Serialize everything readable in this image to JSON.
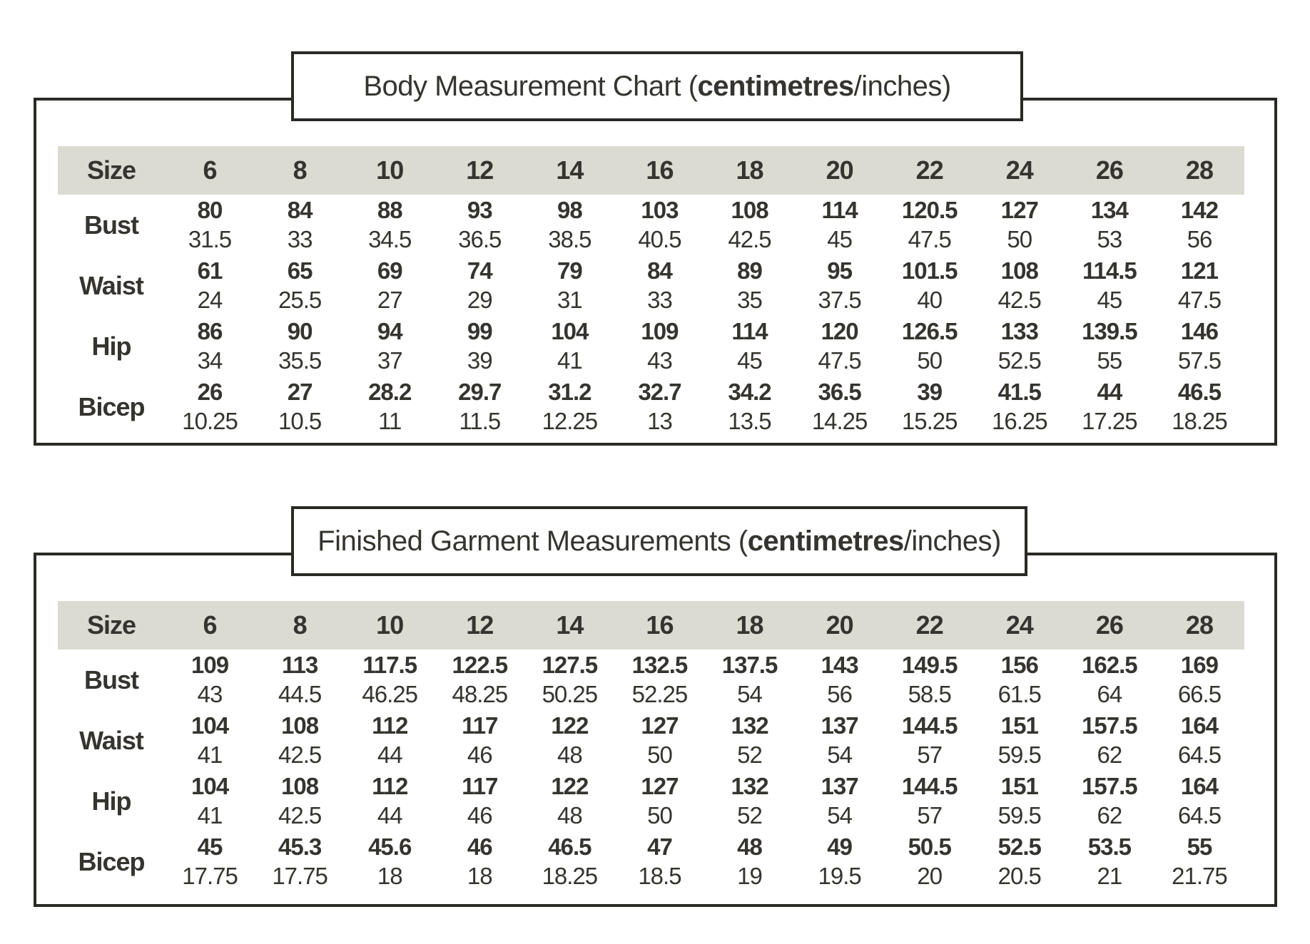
{
  "colors": {
    "background": "#ffffff",
    "border": "#2a2926",
    "header_band": "#dcdbd2",
    "text": "#35342f"
  },
  "tables": [
    {
      "id": "body-measurement-chart",
      "title": {
        "prefix": "Body Measurement Chart (",
        "bold": "centimetres",
        "suffix": "/inches)"
      },
      "size_label": "Size",
      "sizes": [
        "6",
        "8",
        "10",
        "12",
        "14",
        "16",
        "18",
        "20",
        "22",
        "24",
        "26",
        "28"
      ],
      "rows": [
        {
          "label": "Bust",
          "cm": [
            "80",
            "84",
            "88",
            "93",
            "98",
            "103",
            "108",
            "114",
            "120.5",
            "127",
            "134",
            "142"
          ],
          "inches": [
            "31.5",
            "33",
            "34.5",
            "36.5",
            "38.5",
            "40.5",
            "42.5",
            "45",
            "47.5",
            "50",
            "53",
            "56"
          ]
        },
        {
          "label": "Waist",
          "cm": [
            "61",
            "65",
            "69",
            "74",
            "79",
            "84",
            "89",
            "95",
            "101.5",
            "108",
            "114.5",
            "121"
          ],
          "inches": [
            "24",
            "25.5",
            "27",
            "29",
            "31",
            "33",
            "35",
            "37.5",
            "40",
            "42.5",
            "45",
            "47.5"
          ]
        },
        {
          "label": "Hip",
          "cm": [
            "86",
            "90",
            "94",
            "99",
            "104",
            "109",
            "114",
            "120",
            "126.5",
            "133",
            "139.5",
            "146"
          ],
          "inches": [
            "34",
            "35.5",
            "37",
            "39",
            "41",
            "43",
            "45",
            "47.5",
            "50",
            "52.5",
            "55",
            "57.5"
          ]
        },
        {
          "label": "Bicep",
          "cm": [
            "26",
            "27",
            "28.2",
            "29.7",
            "31.2",
            "32.7",
            "34.2",
            "36.5",
            "39",
            "41.5",
            "44",
            "46.5"
          ],
          "inches": [
            "10.25",
            "10.5",
            "11",
            "11.5",
            "12.25",
            "13",
            "13.5",
            "14.25",
            "15.25",
            "16.25",
            "17.25",
            "18.25"
          ]
        }
      ]
    },
    {
      "id": "finished-garment-measurements",
      "title": {
        "prefix": "Finished Garment Measurements (",
        "bold": "centimetres",
        "suffix": "/inches)"
      },
      "size_label": "Size",
      "sizes": [
        "6",
        "8",
        "10",
        "12",
        "14",
        "16",
        "18",
        "20",
        "22",
        "24",
        "26",
        "28"
      ],
      "rows": [
        {
          "label": "Bust",
          "cm": [
            "109",
            "113",
            "117.5",
            "122.5",
            "127.5",
            "132.5",
            "137.5",
            "143",
            "149.5",
            "156",
            "162.5",
            "169"
          ],
          "inches": [
            "43",
            "44.5",
            "46.25",
            "48.25",
            "50.25",
            "52.25",
            "54",
            "56",
            "58.5",
            "61.5",
            "64",
            "66.5"
          ]
        },
        {
          "label": "Waist",
          "cm": [
            "104",
            "108",
            "112",
            "117",
            "122",
            "127",
            "132",
            "137",
            "144.5",
            "151",
            "157.5",
            "164"
          ],
          "inches": [
            "41",
            "42.5",
            "44",
            "46",
            "48",
            "50",
            "52",
            "54",
            "57",
            "59.5",
            "62",
            "64.5"
          ]
        },
        {
          "label": "Hip",
          "cm": [
            "104",
            "108",
            "112",
            "117",
            "122",
            "127",
            "132",
            "137",
            "144.5",
            "151",
            "157.5",
            "164"
          ],
          "inches": [
            "41",
            "42.5",
            "44",
            "46",
            "48",
            "50",
            "52",
            "54",
            "57",
            "59.5",
            "62",
            "64.5"
          ]
        },
        {
          "label": "Bicep",
          "cm": [
            "45",
            "45.3",
            "45.6",
            "46",
            "46.5",
            "47",
            "48",
            "49",
            "50.5",
            "52.5",
            "53.5",
            "55"
          ],
          "inches": [
            "17.75",
            "17.75",
            "18",
            "18",
            "18.25",
            "18.5",
            "19",
            "19.5",
            "20",
            "20.5",
            "21",
            "21.75"
          ]
        }
      ]
    }
  ]
}
